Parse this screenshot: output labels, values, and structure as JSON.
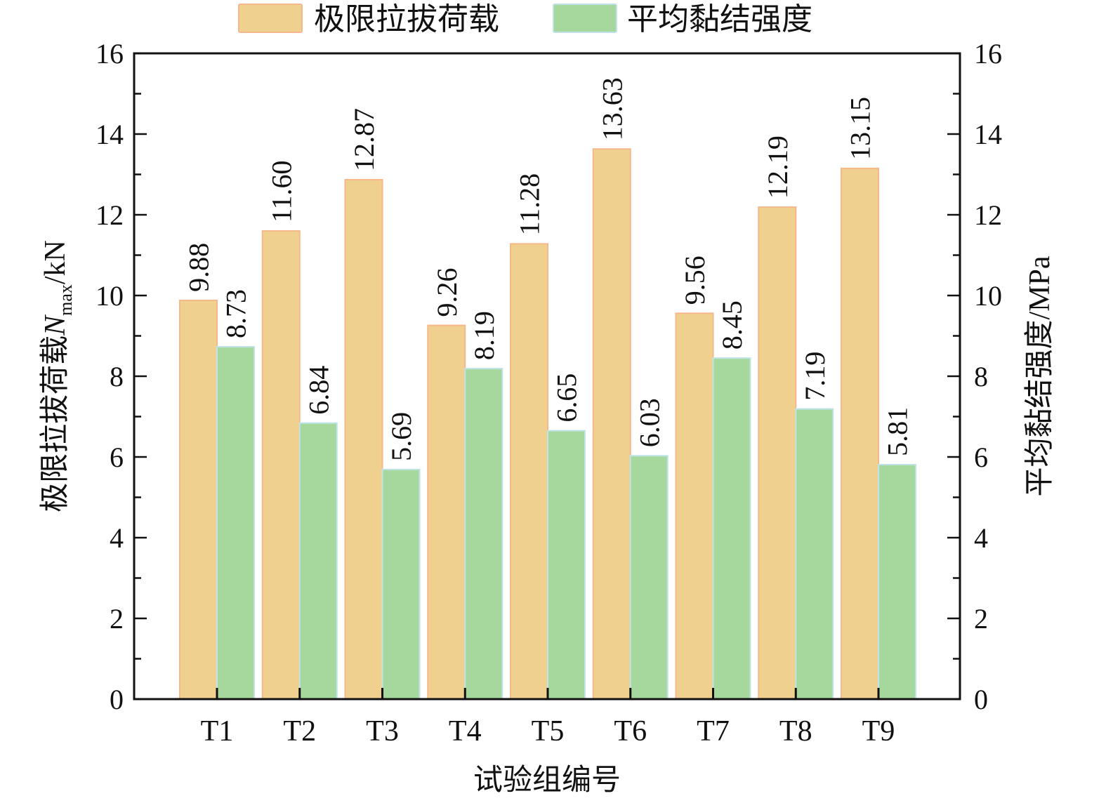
{
  "chart_data": {
    "type": "bar",
    "categories": [
      "T1",
      "T2",
      "T3",
      "T4",
      "T5",
      "T6",
      "T7",
      "T8",
      "T9"
    ],
    "series": [
      {
        "name": "极限拉拔荷载",
        "axis": "left",
        "color": "#f0d08e",
        "edge_color": "#f6b88a",
        "values": [
          9.88,
          11.6,
          12.87,
          9.26,
          11.28,
          13.63,
          9.56,
          12.19,
          13.15
        ],
        "labels": [
          "9.88",
          "11.60",
          "12.87",
          "9.26",
          "11.28",
          "13.63",
          "9.56",
          "12.19",
          "13.15"
        ]
      },
      {
        "name": "平均黏结强度",
        "axis": "right",
        "color": "#a6d89e",
        "edge_color": "#bfe3e6",
        "values": [
          8.73,
          6.84,
          5.69,
          8.19,
          6.65,
          6.03,
          8.45,
          7.19,
          5.81
        ],
        "labels": [
          "8.73",
          "6.84",
          "5.69",
          "8.19",
          "6.65",
          "6.03",
          "8.45",
          "7.19",
          "5.81"
        ]
      }
    ],
    "xlabel": "试验组编号",
    "ylabel_left": {
      "prefix": "极限拉拔荷载",
      "var": "N",
      "sub": "max",
      "suffix": "/kN"
    },
    "ylabel_right": "平均黏结强度/MPa",
    "ylim_left": [
      0,
      16
    ],
    "ylim_right": [
      0,
      16
    ],
    "yticks": [
      "0",
      "2",
      "4",
      "6",
      "8",
      "10",
      "12",
      "14",
      "16"
    ],
    "grid": false,
    "legend_position": "top-center"
  }
}
